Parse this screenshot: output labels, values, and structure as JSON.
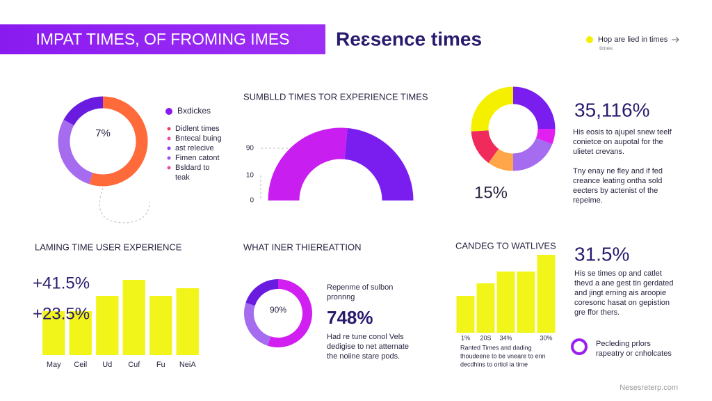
{
  "header": {
    "title": "IMPAT TIMES, OF FROMING IMES",
    "subtitle": "Reɛsence times",
    "legend": "Hop are lied in times",
    "legend_sub": "times"
  },
  "panel1": {
    "legend_title": "Bxdickes",
    "legend_items": [
      "Didlent times",
      "Bntecal buing",
      "ast relecive",
      "Fimen catont",
      "Bsldard to",
      "teak"
    ]
  },
  "panel3": {
    "big": "35,116%",
    "para1": [
      "His eosis to ajupel snew teelf",
      "conietce on aupotal for the",
      "ulietet crevans."
    ],
    "para2": [
      "Tny enay ne fley and if fed",
      "creance leating ontha sold",
      "eecters by actenist of the",
      "repeime."
    ]
  },
  "panel5": {
    "intro": [
      "Repenme of sulbon",
      "pronnng"
    ],
    "big": "748%",
    "para": [
      "Had re tune conol Vels",
      "dedigise to net atternate",
      "the noiine stare pods."
    ]
  },
  "panel6": {
    "para": [
      "Ranted Times and dading",
      "thoudeene to be vneare to enn",
      "decdhins to ortiol ia time"
    ]
  },
  "panel7": {
    "big": "31.5%",
    "para": [
      "His se times op and catlet",
      "thevd a ane gest tin gerdated",
      "and jingt erning ais aroopie",
      "coresonc hasat on gepistion",
      "gre ffor thers."
    ],
    "note": [
      "Pecleding prlors",
      "rapeatry or cnholcates"
    ]
  },
  "footer": "Nesesreterp.com",
  "chart_data": [
    {
      "type": "donut",
      "center_label": "7%",
      "values": [
        55,
        28,
        17
      ],
      "colors": [
        "#ff6a3a",
        "#a66cf0",
        "#6a1be0"
      ]
    },
    {
      "type": "gauge",
      "title": "SUMBLLD TIMES TOR EXPERIENCE TIMES",
      "tick_labels": [
        "90",
        "10",
        "0"
      ],
      "values": [
        53,
        47
      ],
      "colors": [
        "#c81ff0",
        "#7a1ef0"
      ]
    },
    {
      "type": "donut",
      "center_label": "15%",
      "values": [
        25,
        6,
        19,
        10,
        14,
        26
      ],
      "colors": [
        "#7a1ef0",
        "#e01ff0",
        "#a66cf0",
        "#ffa64a",
        "#f02a5a",
        "#f5f000"
      ]
    },
    {
      "type": "bar",
      "title": "LAMING TIME USER EXPERIENCE",
      "overlay_labels": [
        "+41.5%",
        "+23.5%"
      ],
      "categories": [
        "May",
        "Ceil",
        "Ud",
        "Cuf",
        "Fu",
        "NeiA"
      ],
      "values": [
        63,
        63,
        85,
        108,
        85,
        96
      ],
      "ylim": [
        0,
        120
      ],
      "color": "#f2f51a"
    },
    {
      "type": "donut",
      "title": "WHAT INER THIEREATTION",
      "center_label": "90%",
      "values": [
        55,
        25,
        20
      ],
      "colors": [
        "#d01ff0",
        "#a66cf0",
        "#6a1be0"
      ]
    },
    {
      "type": "bar",
      "title": "CANDEG TO WATLIVES",
      "categories": [
        "1%",
        "20S",
        "34%",
        null,
        "30%"
      ],
      "values": [
        53,
        71,
        88,
        88,
        112
      ],
      "ylim": [
        0,
        120
      ],
      "color": "#f2f51a"
    }
  ]
}
